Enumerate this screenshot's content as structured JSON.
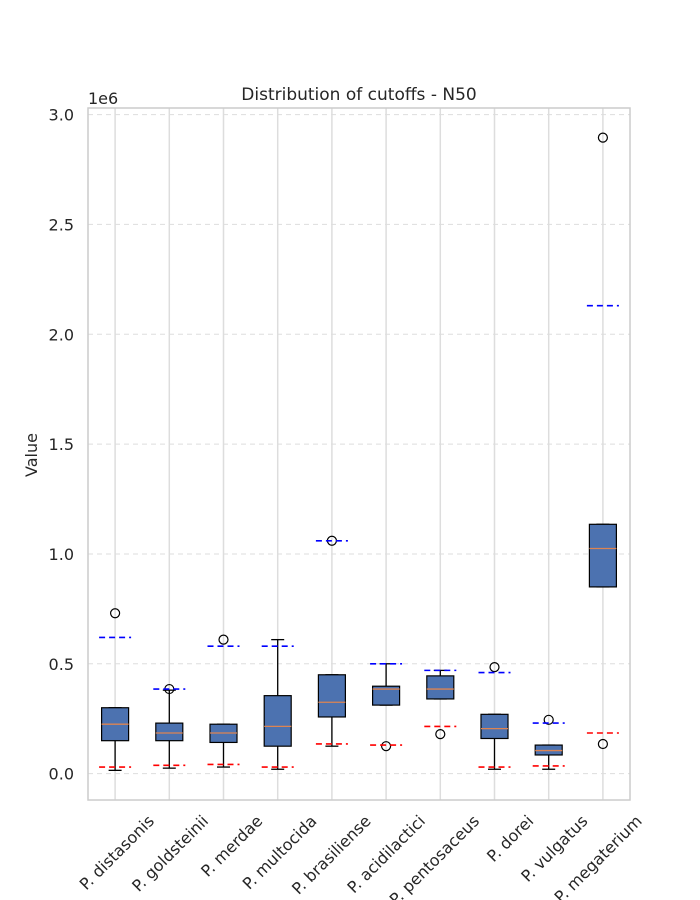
{
  "chart_data": {
    "type": "box",
    "title": "Distribution of cutoffs - N50",
    "xlabel": "",
    "ylabel": "Value",
    "y_scale_label": "1e6",
    "ylim": [
      -120000,
      3030000
    ],
    "yticks": [
      0.0,
      0.5,
      1.0,
      1.5,
      2.0,
      2.5,
      3.0
    ],
    "ytick_labels": [
      "0.0",
      "0.5",
      "1.0",
      "1.5",
      "2.0",
      "2.5",
      "3.0"
    ],
    "grid": true,
    "colors": {
      "box_fill": "#4c72b0",
      "median": "#dd8452",
      "upper_cutoff": "#0000ff",
      "lower_cutoff": "#ff0000",
      "grid": "#dddddd",
      "axes": "#cccccc",
      "text": "#262626"
    },
    "categories": [
      "P. distasonis",
      "P. goldsteinii",
      "P. merdae",
      "P. multocida",
      "P. brasiliense",
      "P. acidilactici",
      "P. pentosaceus",
      "P. dorei",
      "P. vulgatus",
      "P. megaterium"
    ],
    "series": [
      {
        "whislo": 15000,
        "q1": 150000,
        "med": 225000,
        "q3": 300000,
        "whishi": 300000,
        "fliers": [
          730000
        ],
        "upper_cutoff": 620000,
        "lower_cutoff": 30000
      },
      {
        "whislo": 25000,
        "q1": 150000,
        "med": 185000,
        "q3": 230000,
        "whishi": 380000,
        "fliers": [
          385000
        ],
        "upper_cutoff": 385000,
        "lower_cutoff": 38000
      },
      {
        "whislo": 30000,
        "q1": 142000,
        "med": 185000,
        "q3": 225000,
        "whishi": 225000,
        "fliers": [
          610000
        ],
        "upper_cutoff": 580000,
        "lower_cutoff": 42000
      },
      {
        "whislo": 20000,
        "q1": 125000,
        "med": 215000,
        "q3": 355000,
        "whishi": 610000,
        "fliers": [],
        "upper_cutoff": 580000,
        "lower_cutoff": 30000
      },
      {
        "whislo": 125000,
        "q1": 258000,
        "med": 325000,
        "q3": 450000,
        "whishi": 450000,
        "fliers": [
          1060000
        ],
        "upper_cutoff": 1060000,
        "lower_cutoff": 135000
      },
      {
        "whislo": 312000,
        "q1": 312000,
        "med": 385000,
        "q3": 398000,
        "whishi": 500000,
        "fliers": [
          125000
        ],
        "upper_cutoff": 500000,
        "lower_cutoff": 130000
      },
      {
        "whislo": 340000,
        "q1": 340000,
        "med": 385000,
        "q3": 445000,
        "whishi": 470000,
        "fliers": [
          180000
        ],
        "upper_cutoff": 470000,
        "lower_cutoff": 215000
      },
      {
        "whislo": 20000,
        "q1": 160000,
        "med": 205000,
        "q3": 270000,
        "whishi": 270000,
        "fliers": [
          485000
        ],
        "upper_cutoff": 460000,
        "lower_cutoff": 30000
      },
      {
        "whislo": 20000,
        "q1": 85000,
        "med": 105000,
        "q3": 130000,
        "whishi": 130000,
        "fliers": [
          245000
        ],
        "upper_cutoff": 230000,
        "lower_cutoff": 35000
      },
      {
        "whislo": 850000,
        "q1": 850000,
        "med": 1025000,
        "q3": 1135000,
        "whishi": 1135000,
        "fliers": [
          2895000,
          135000
        ],
        "upper_cutoff": 2130000,
        "lower_cutoff": 185000
      }
    ]
  }
}
